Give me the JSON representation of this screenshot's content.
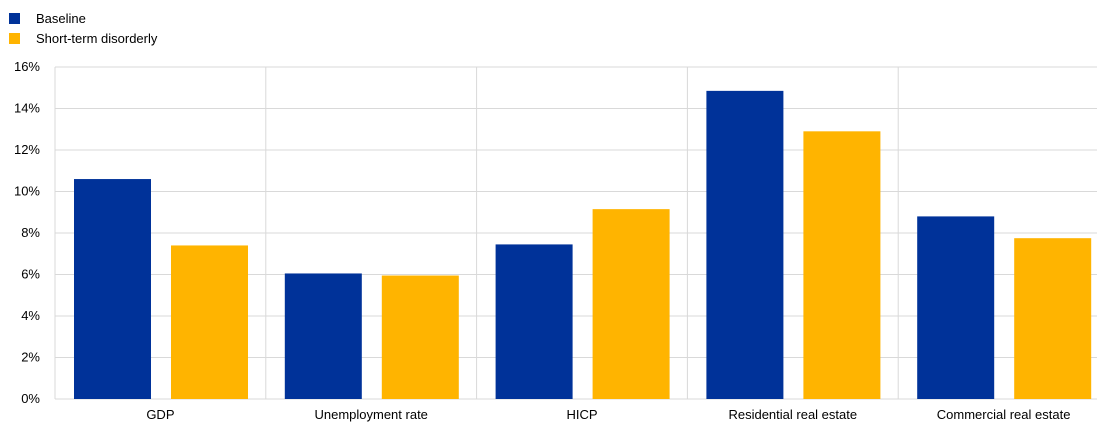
{
  "chart_data": {
    "type": "bar",
    "categories": [
      "GDP",
      "Unemployment rate",
      "HICP",
      "Residential real estate",
      "Commercial real estate"
    ],
    "series": [
      {
        "name": "Baseline",
        "color": "#003299",
        "values": [
          10.6,
          6.05,
          7.45,
          14.85,
          8.8
        ]
      },
      {
        "name": "Short-term disorderly",
        "color": "#FFB400",
        "values": [
          7.4,
          5.95,
          9.15,
          12.9,
          7.75
        ]
      }
    ],
    "ylim": [
      0,
      16
    ],
    "yticks": [
      0,
      2,
      4,
      6,
      8,
      10,
      12,
      14,
      16
    ],
    "ytick_labels": [
      "0%",
      "2%",
      "4%",
      "6%",
      "8%",
      "10%",
      "12%",
      "14%",
      "16%"
    ],
    "grid": true,
    "legend_position": "top-left",
    "title": "",
    "xlabel": "",
    "ylabel": ""
  }
}
